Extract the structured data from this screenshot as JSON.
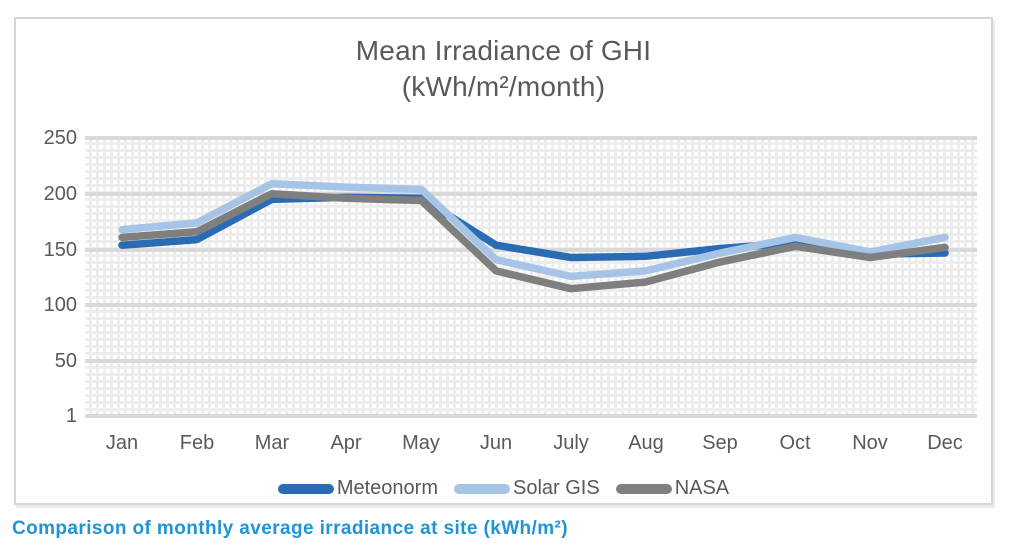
{
  "figure": {
    "title_line1": "Mean Irradiance of GHI",
    "title_line2": "(kWh/m²/month)",
    "caption": "Comparison of monthly average irradiance at site (kWh/m²)"
  },
  "axis": {
    "y_labels": [
      "250",
      "200",
      "150",
      "100",
      "50",
      "1"
    ]
  },
  "colors": {
    "meteonorm": "#2a6cb4",
    "solar_gis": "#a6c5e6",
    "nasa": "#7f7f7f",
    "major_gridline": "#d9d9d9",
    "text": "#595959",
    "caption": "#2095d2"
  },
  "chart_data": {
    "type": "line",
    "title": "Mean Irradiance of GHI (kWh/m²/month)",
    "categories": [
      "Jan",
      "Feb",
      "Mar",
      "Apr",
      "May",
      "Jun",
      "July",
      "Aug",
      "Sep",
      "Oct",
      "Nov",
      "Dec"
    ],
    "series": [
      {
        "name": "Meteonorm",
        "color": "#2a6cb4",
        "values": [
          154,
          159,
          195,
          197,
          196,
          154,
          143,
          144,
          151,
          156,
          146,
          147
        ]
      },
      {
        "name": "Solar GIS",
        "color": "#a6c5e6",
        "values": [
          168,
          174,
          209,
          206,
          204,
          141,
          126,
          131,
          147,
          161,
          148,
          161
        ]
      },
      {
        "name": "NASA",
        "color": "#7f7f7f",
        "values": [
          161,
          166,
          200,
          196,
          194,
          131,
          115,
          121,
          139,
          153,
          143,
          152
        ]
      }
    ],
    "y_ticks": [
      250,
      200,
      150,
      100,
      50,
      1
    ],
    "ylim": [
      1,
      250
    ],
    "xlabel": "",
    "ylabel": "",
    "grid": "major horizontal lines + fine minor mesh",
    "legend_position": "bottom"
  }
}
